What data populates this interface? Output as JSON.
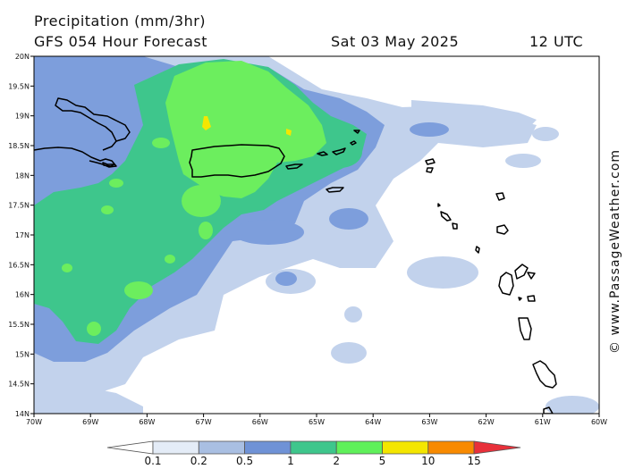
{
  "title": {
    "line1": "Precipitation (mm/3hr)",
    "line2": "GFS 054 Hour Forecast",
    "date": "Sat 03 May 2025",
    "time": "12 UTC"
  },
  "credit": "© www.PassageWeather.com",
  "lat_labels": [
    "20N",
    "19.5N",
    "19N",
    "18.5N",
    "18N",
    "17.5N",
    "17N",
    "16.5N",
    "16N",
    "15.5N",
    "15N",
    "14.5N",
    "14N"
  ],
  "lon_labels": [
    "70W",
    "69W",
    "68W",
    "67W",
    "66W",
    "65W",
    "64W",
    "63W",
    "62W",
    "61W",
    "60W"
  ],
  "legend": {
    "labels": [
      "0.1",
      "0.2",
      "0.5",
      "1",
      "2",
      "5",
      "10",
      "15"
    ],
    "colors": [
      "#ffffff",
      "#e4ecf7",
      "#a9bfe2",
      "#6f92d6",
      "#3ec68c",
      "#5ff05a",
      "#f4e600",
      "#f88a00",
      "#e8303a"
    ]
  },
  "colors": {
    "light": "#c2d2ec",
    "mid": "#7d9edc",
    "teal": "#3ec68c",
    "green": "#6cee5e",
    "yellow": "#f4e600",
    "coast": "#000000"
  }
}
